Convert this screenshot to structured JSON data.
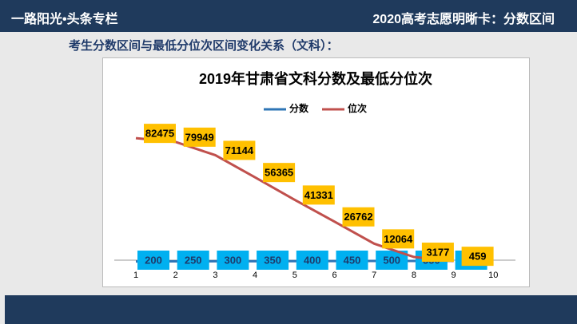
{
  "header": {
    "left": "一路阳光•头条专栏",
    "right": "2020高考志愿明晰卡：分数区间"
  },
  "subtitle": "考生分数区间与最低分位次区间变化关系（文科）：",
  "chart_data": {
    "type": "line",
    "title": "2019年甘肃省文科分数及最低分位次",
    "categories": [
      "1",
      "2",
      "3",
      "4",
      "5",
      "6",
      "7",
      "8",
      "9",
      "10"
    ],
    "series": [
      {
        "name": "分数",
        "color": "#2e75b6",
        "label_color": "#00b0f0",
        "values": [
          200,
          250,
          300,
          350,
          400,
          450,
          500,
          550,
          600,
          null
        ]
      },
      {
        "name": "位次",
        "color": "#c0504d",
        "label_color": "#ffc000",
        "values": [
          82475,
          79949,
          71144,
          56365,
          41331,
          26762,
          12064,
          3177,
          459,
          null
        ]
      }
    ],
    "ylim": [
      0,
      90000
    ],
    "grid": false,
    "legend": "top"
  }
}
